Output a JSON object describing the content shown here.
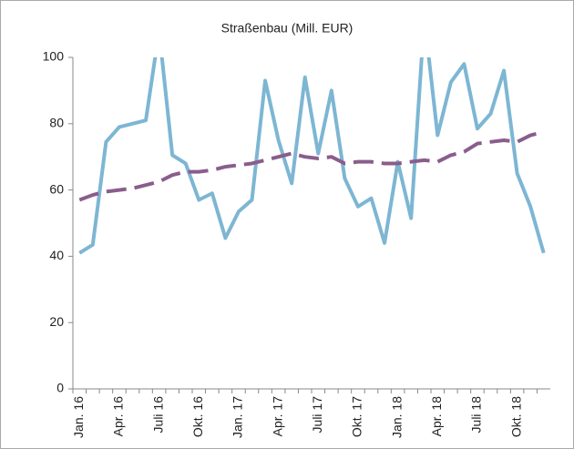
{
  "chart_data": {
    "type": "line",
    "title": "Straßenbau (Mill. EUR)",
    "categories": [
      "Jan. 16",
      null,
      null,
      "Apr. 16",
      null,
      null,
      "Juli 16",
      null,
      null,
      "Okt. 16",
      null,
      null,
      "Jan. 17",
      null,
      null,
      "Apr. 17",
      null,
      null,
      "Juli 17",
      null,
      null,
      "Okt. 17",
      null,
      null,
      "Jan. 18",
      null,
      null,
      "Apr. 18",
      null,
      null,
      "Juli 18",
      null,
      null,
      "Okt. 18",
      null,
      null
    ],
    "series": [
      {
        "color": "#7db6d3",
        "dash": false,
        "values": [
          41,
          43.5,
          74.5,
          79,
          80,
          81,
          108,
          70.5,
          68,
          57,
          59,
          45.5,
          53.5,
          57,
          93,
          75,
          62,
          94,
          71,
          90,
          63.5,
          55,
          57.5,
          44,
          68.5,
          51.5,
          112,
          76.5,
          92.5,
          98,
          78.5,
          83,
          96,
          65,
          55,
          41
        ]
      },
      {
        "color": "#8a5d8c",
        "dash": true,
        "values": [
          57,
          58.5,
          59.5,
          60,
          60.5,
          61.5,
          62.5,
          64.5,
          65.5,
          65.5,
          66,
          67,
          67.5,
          68,
          69,
          70,
          71,
          70,
          69.5,
          70,
          68,
          68.5,
          68.5,
          68,
          68,
          68.5,
          69,
          68.5,
          70.5,
          71.5,
          74,
          74.5,
          75,
          74.5,
          76.5,
          77.5
        ]
      }
    ],
    "ylim": [
      0,
      100
    ],
    "yticks": [
      0,
      20,
      40,
      60,
      80,
      100
    ],
    "grid": false
  }
}
